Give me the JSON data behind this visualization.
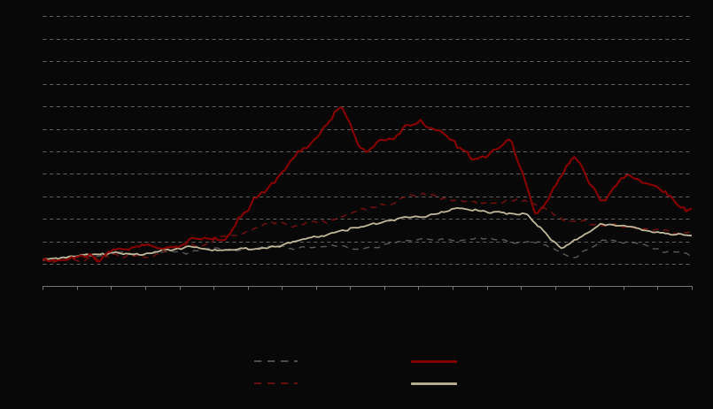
{
  "background_color": "#080808",
  "plot_bg_color": "#080808",
  "n_points": 250,
  "line1_color": "#c0b898",
  "line2_color": "#5a5a5a",
  "line3_color": "#7a1010",
  "line4_color": "#8b0000",
  "seed": 42,
  "ylim_min": -0.15,
  "ylim_max": 1.6,
  "grid_color": "#888888",
  "n_gridlines": 13,
  "spine_color": "#888888"
}
